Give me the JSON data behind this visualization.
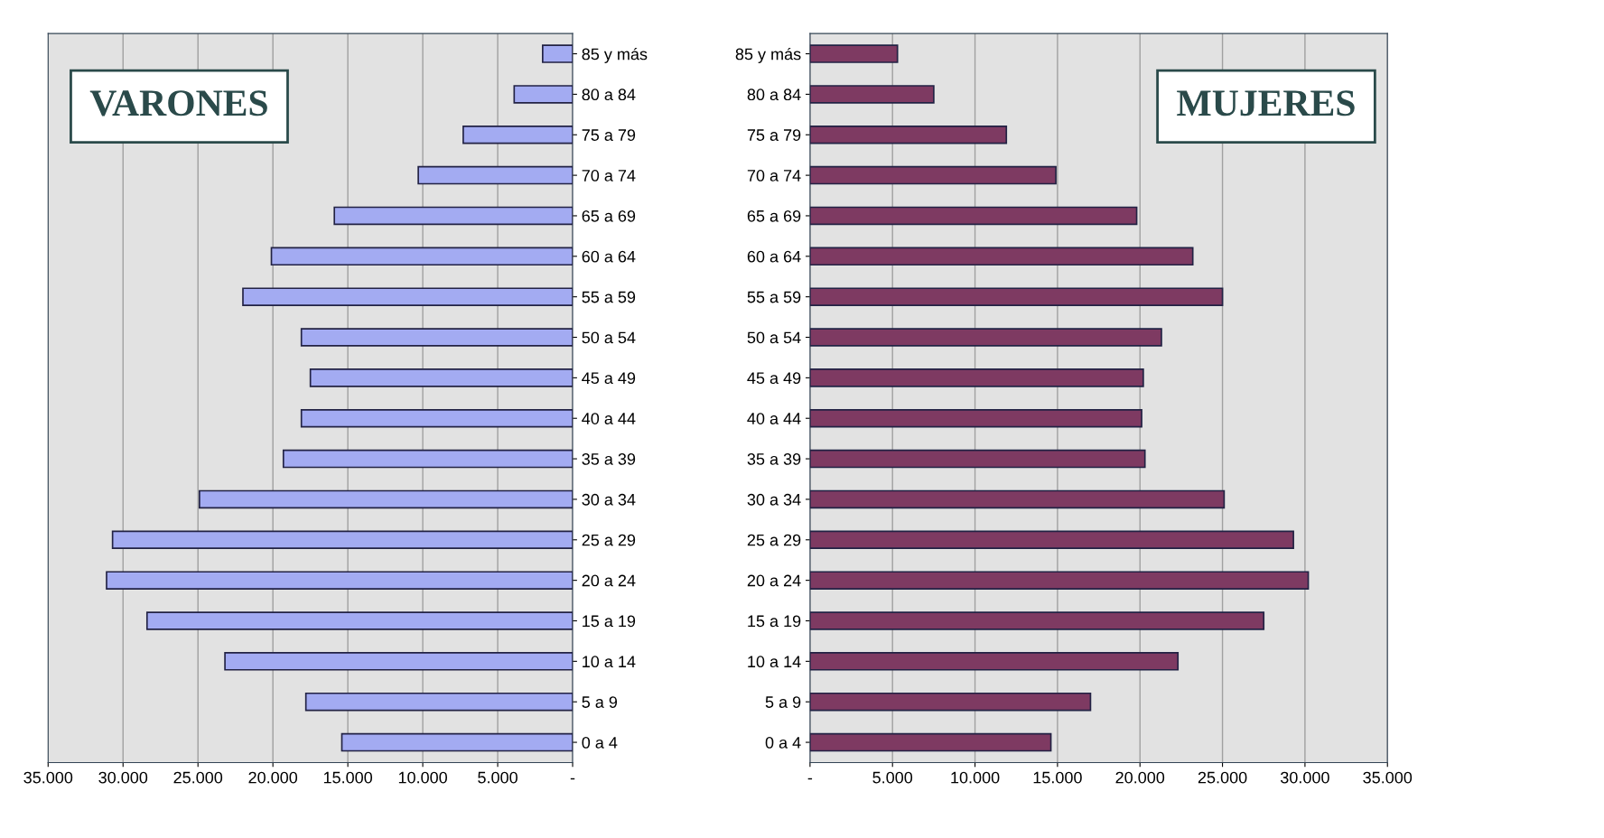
{
  "chart_data": [
    {
      "type": "bar",
      "orientation": "horizontal",
      "title": "VARONES",
      "categories": [
        "85 y más",
        "80 a 84",
        "75 a 79",
        "70 a 74",
        "65 a 69",
        "60 a 64",
        "55 a 59",
        "50 a 54",
        "45 a 49",
        "40 a 44",
        "35 a 39",
        "30 a 34",
        "25 a 29",
        "20 a 24",
        "15 a 19",
        "10 a 14",
        "5 a 9",
        "0 a 4"
      ],
      "values": [
        2000,
        3900,
        7300,
        10300,
        15900,
        20100,
        22000,
        18100,
        17500,
        18100,
        19300,
        24900,
        30700,
        31100,
        28400,
        23200,
        17800,
        15400
      ],
      "color": "#a3abf2",
      "xlim": [
        35000,
        0
      ],
      "xticks": [
        {
          "value": 35000,
          "label": "35.000"
        },
        {
          "value": 30000,
          "label": "30.000"
        },
        {
          "value": 25000,
          "label": "25.000"
        },
        {
          "value": 20000,
          "label": "20.000"
        },
        {
          "value": 15000,
          "label": "15.000"
        },
        {
          "value": 10000,
          "label": "10.000"
        },
        {
          "value": 5000,
          "label": "5.000"
        },
        {
          "value": 0,
          "label": "-"
        }
      ],
      "grid": "x"
    },
    {
      "type": "bar",
      "orientation": "horizontal",
      "title": "MUJERES",
      "categories": [
        "85 y más",
        "80 a 84",
        "75 a 79",
        "70 a 74",
        "65 a 69",
        "60 a 64",
        "55 a 59",
        "50 a 54",
        "45 a 49",
        "40 a 44",
        "35 a 39",
        "30 a 34",
        "25 a 29",
        "20 a 24",
        "15 a 19",
        "10 a 14",
        "5 a 9",
        "0 a 4"
      ],
      "values": [
        5300,
        7500,
        11900,
        14900,
        19800,
        23200,
        25000,
        21300,
        20200,
        20100,
        20300,
        25100,
        29300,
        30200,
        27500,
        22300,
        17000,
        14600
      ],
      "color": "#7e3a62",
      "xlim": [
        0,
        35000
      ],
      "xticks": [
        {
          "value": 0,
          "label": "-"
        },
        {
          "value": 5000,
          "label": "5.000"
        },
        {
          "value": 10000,
          "label": "10.000"
        },
        {
          "value": 15000,
          "label": "15.000"
        },
        {
          "value": 20000,
          "label": "20.000"
        },
        {
          "value": 25000,
          "label": "25.000"
        },
        {
          "value": 30000,
          "label": "30.000"
        },
        {
          "value": 35000,
          "label": "35.000"
        }
      ],
      "grid": "x"
    }
  ]
}
